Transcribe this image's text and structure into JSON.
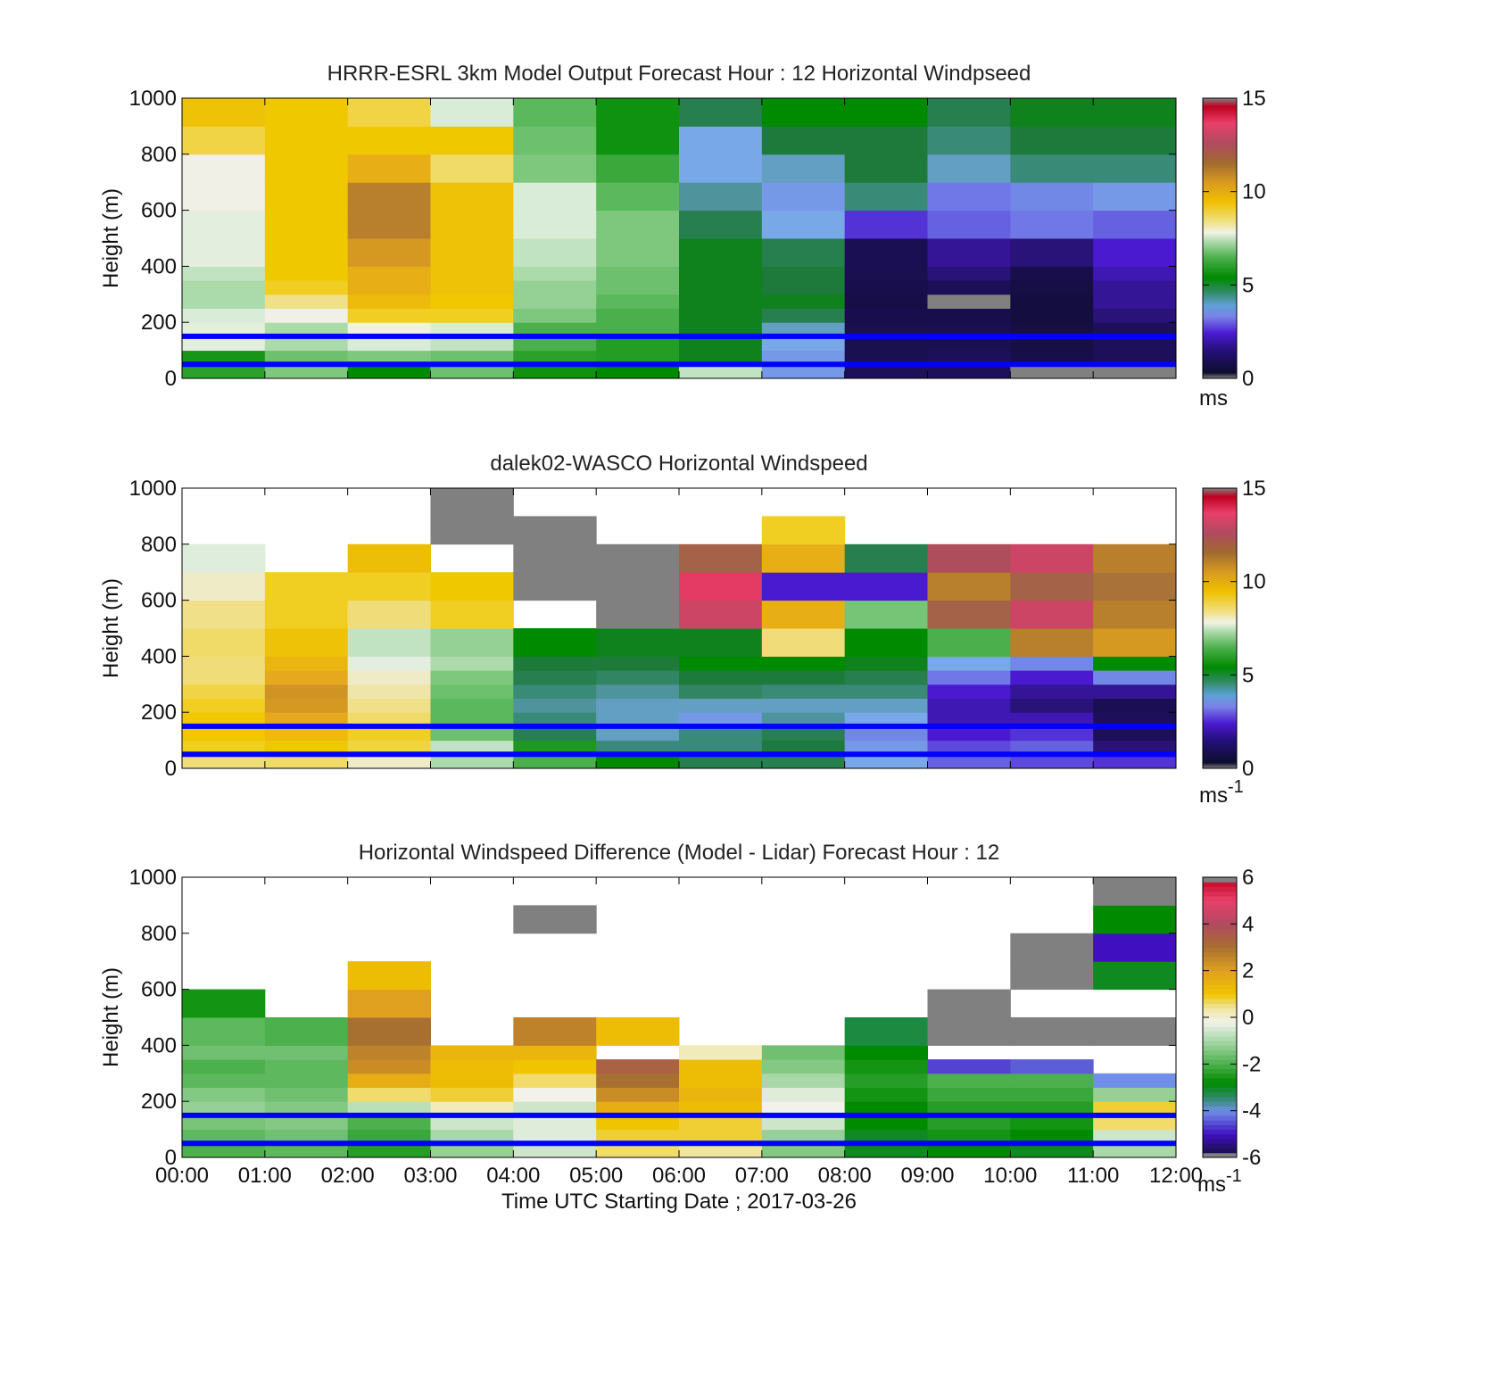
{
  "figure": {
    "xlabel": "Time UTC  Starting Date ; 2017-03-26",
    "xticks": [
      "00:00",
      "01:00",
      "02:00",
      "03:00",
      "04:00",
      "05:00",
      "06:00",
      "07:00",
      "08:00",
      "09:00",
      "10:00",
      "11:00",
      "12:00"
    ]
  },
  "reference_lines": {
    "color": "#0000ff",
    "heights_m": [
      150,
      50
    ]
  },
  "chart_data": [
    {
      "type": "heatmap",
      "title": "HRRR-ESRL 3km Model Output   Forecast Hour : 12 Horizontal Windpseed",
      "ylabel": "Height (m)",
      "yticks": [
        "0",
        "200",
        "400",
        "600",
        "800",
        "1000"
      ],
      "ylim": [
        0,
        1000
      ],
      "xlim_hours": [
        0,
        12
      ],
      "colorbar": {
        "min": 0,
        "max": 15,
        "ticks": [
          "0",
          "5",
          "10",
          "15"
        ],
        "unit": "ms",
        "unit_sup": ""
      },
      "x_hours": [
        0.5,
        1.5,
        2.5,
        3.5,
        4.5,
        5.5,
        6.5,
        7.5,
        8.5,
        9.5,
        10.5,
        11.5
      ],
      "levels_m": [
        25,
        75,
        125,
        175,
        225,
        275,
        325,
        375,
        450,
        550,
        650,
        750,
        850,
        950
      ],
      "windspeed_ms": [
        [
          5.6,
          5.3,
          7.6,
          7.6,
          7.4,
          7.0,
          7.0,
          7.2,
          7.6,
          7.6,
          7.8,
          7.8,
          8.8,
          9.4
        ],
        [
          6.6,
          6.4,
          7.0,
          7.0,
          7.8,
          8.4,
          9.0,
          9.2,
          9.2,
          9.2,
          9.2,
          9.2,
          9.2,
          9.2
        ],
        [
          5.0,
          6.6,
          7.4,
          7.8,
          9.0,
          9.6,
          10.0,
          10.0,
          10.5,
          11.0,
          11.0,
          10.0,
          9.2,
          8.8
        ],
        [
          6.4,
          6.4,
          7.2,
          7.4,
          9.0,
          9.2,
          9.4,
          9.4,
          9.4,
          9.4,
          9.4,
          8.6,
          9.2,
          7.4
        ],
        [
          5.2,
          5.6,
          6.0,
          6.0,
          6.6,
          6.8,
          6.8,
          7.0,
          7.2,
          7.4,
          7.4,
          6.6,
          6.4,
          6.2
        ],
        [
          5.0,
          5.5,
          5.5,
          6.0,
          6.0,
          6.2,
          6.4,
          6.4,
          6.6,
          6.6,
          6.2,
          5.8,
          5.2,
          5.2
        ],
        [
          7.2,
          4.8,
          4.8,
          4.8,
          4.8,
          4.8,
          4.8,
          4.8,
          4.8,
          4.4,
          3.8,
          3.4,
          3.4,
          4.4
        ],
        [
          3.2,
          3.2,
          3.4,
          3.6,
          4.4,
          4.8,
          4.6,
          4.6,
          4.4,
          3.4,
          3.2,
          3.6,
          4.6,
          5.0
        ],
        [
          1.2,
          1.0,
          0.9,
          0.9,
          0.8,
          0.7,
          0.8,
          0.9,
          1.0,
          2.2,
          4.0,
          4.6,
          4.6,
          5.0
        ],
        [
          1.2,
          1.2,
          1.0,
          1.0,
          0.8,
          16.0,
          1.1,
          1.4,
          1.6,
          2.6,
          2.8,
          3.6,
          4.0,
          4.4
        ],
        [
          16.0,
          0.8,
          0.6,
          0.6,
          0.5,
          0.5,
          0.6,
          0.8,
          1.4,
          2.8,
          3.0,
          4.0,
          4.6,
          4.8
        ],
        [
          16.0,
          1.2,
          1.2,
          1.2,
          1.4,
          1.6,
          1.6,
          1.8,
          2.0,
          2.6,
          3.2,
          4.0,
          4.6,
          4.8
        ]
      ]
    },
    {
      "type": "heatmap",
      "title": "dalek02-WASCO  Horizontal Windspeed",
      "ylabel": "Height (m)",
      "yticks": [
        "0",
        "200",
        "400",
        "600",
        "800",
        "1000"
      ],
      "ylim": [
        0,
        1000
      ],
      "xlim_hours": [
        0,
        12
      ],
      "colorbar": {
        "min": 0,
        "max": 15,
        "ticks": [
          "0",
          "5",
          "10",
          "15"
        ],
        "unit": "ms",
        "unit_sup": "-1"
      },
      "x_hours": [
        0.5,
        1.5,
        2.5,
        3.5,
        4.5,
        5.5,
        6.5,
        7.5,
        8.5,
        9.5,
        10.5,
        11.5
      ],
      "levels_m": [
        25,
        75,
        125,
        175,
        225,
        275,
        325,
        375,
        450,
        550,
        650,
        750,
        850,
        950
      ],
      "windspeed_ms": [
        [
          8.5,
          9.0,
          9.2,
          9.2,
          9.0,
          8.8,
          8.5,
          8.5,
          8.6,
          8.4,
          8.0,
          7.5,
          null,
          null
        ],
        [
          8.6,
          9.2,
          9.6,
          10.2,
          10.5,
          10.6,
          10.2,
          9.8,
          9.4,
          9.0,
          9.0,
          null,
          null,
          null
        ],
        [
          8.0,
          8.8,
          9.0,
          8.6,
          8.4,
          8.2,
          8.0,
          7.6,
          7.2,
          8.5,
          9.0,
          9.5,
          null,
          null
        ],
        [
          7.0,
          7.2,
          6.4,
          6.2,
          6.2,
          6.4,
          6.6,
          7.0,
          6.8,
          9.0,
          9.2,
          null,
          16.0,
          16.0
        ],
        [
          6.0,
          5.4,
          4.4,
          4.0,
          3.8,
          4.0,
          4.4,
          4.6,
          5.0,
          null,
          16.0,
          16.0,
          16.0,
          null
        ],
        [
          5.0,
          4.0,
          3.6,
          3.6,
          3.6,
          3.8,
          4.2,
          4.6,
          4.8,
          16.0,
          16.0,
          16.0,
          null,
          null
        ],
        [
          4.4,
          4.0,
          4.0,
          3.2,
          3.6,
          4.2,
          4.6,
          5.0,
          4.8,
          13.0,
          13.5,
          12.0,
          null,
          null
        ],
        [
          4.4,
          4.6,
          4.4,
          3.8,
          3.6,
          4.0,
          4.6,
          5.0,
          8.5,
          10.0,
          2.0,
          10.0,
          9.0,
          null
        ],
        [
          3.4,
          3.2,
          3.0,
          3.4,
          3.6,
          4.0,
          4.4,
          4.8,
          5.0,
          6.5,
          2.0,
          4.4,
          null,
          null
        ],
        [
          2.6,
          2.4,
          2.0,
          1.8,
          1.8,
          2.0,
          2.8,
          3.4,
          6.0,
          12.0,
          11.0,
          12.5,
          null,
          null
        ],
        [
          2.4,
          2.6,
          2.2,
          1.8,
          1.4,
          1.6,
          2.0,
          3.0,
          11.0,
          13.0,
          12.0,
          13.0,
          null,
          null
        ],
        [
          2.2,
          1.4,
          1.2,
          1.2,
          1.0,
          1.6,
          3.0,
          5.0,
          10.5,
          11.0,
          11.5,
          11.0,
          null,
          null
        ]
      ]
    },
    {
      "type": "heatmap",
      "title": "Horizontal Windspeed Difference (Model - Lidar) Forecast Hour : 12",
      "ylabel": "Height (m)",
      "yticks": [
        "0",
        "200",
        "400",
        "600",
        "800",
        "1000"
      ],
      "ylim": [
        0,
        1000
      ],
      "xlim_hours": [
        0,
        12
      ],
      "colorbar": {
        "min": -6,
        "max": 6,
        "ticks": [
          "-6",
          "-4",
          "-2",
          "0",
          "2",
          "4",
          "6"
        ],
        "unit": "ms",
        "unit_sup": "-1"
      },
      "x_hours": [
        0.5,
        1.5,
        2.5,
        3.5,
        4.5,
        5.5,
        6.5,
        7.5,
        8.5,
        9.5,
        10.5,
        11.5
      ],
      "levels_m": [
        25,
        75,
        125,
        175,
        225,
        275,
        325,
        375,
        450,
        550,
        650,
        750,
        850,
        950
      ],
      "difference_ms": [
        [
          -2.0,
          -1.8,
          -1.5,
          -1.2,
          -1.4,
          -1.8,
          -2.0,
          -1.6,
          -1.8,
          -2.6,
          null,
          null,
          null,
          null
        ],
        [
          -1.8,
          -1.6,
          -1.4,
          -1.4,
          -1.6,
          -1.8,
          -1.8,
          -1.6,
          -2.0,
          null,
          null,
          null,
          null,
          null
        ],
        [
          -2.4,
          -2.2,
          -2.0,
          -0.8,
          0.6,
          1.6,
          2.4,
          2.6,
          3.0,
          2.0,
          1.2,
          null,
          null,
          null
        ],
        [
          -1.2,
          -1.0,
          -0.6,
          0.2,
          0.8,
          1.2,
          1.2,
          1.4,
          null,
          null,
          null,
          null,
          null,
          null
        ],
        [
          -0.6,
          -0.4,
          -0.4,
          -0.6,
          -0.2,
          0.6,
          1.0,
          1.4,
          2.6,
          null,
          null,
          null,
          6.6,
          null
        ],
        [
          0.6,
          0.8,
          1.0,
          1.6,
          2.4,
          3.0,
          3.4,
          null,
          1.2,
          null,
          null,
          null,
          null,
          null
        ],
        [
          0.4,
          0.8,
          0.8,
          1.2,
          1.4,
          1.2,
          1.2,
          0.2,
          null,
          null,
          null,
          null,
          null,
          null
        ],
        [
          -1.4,
          -1.2,
          -0.6,
          -0.2,
          -0.4,
          -1.0,
          -1.4,
          -1.6,
          null,
          null,
          null,
          null,
          null,
          null
        ],
        [
          -3.0,
          -3.0,
          -2.8,
          -2.8,
          -2.6,
          -2.4,
          -2.6,
          -2.8,
          -3.2,
          null,
          null,
          null,
          null,
          null
        ],
        [
          -2.8,
          -2.6,
          -2.4,
          -2.4,
          -2.2,
          -2.0,
          -4.6,
          null,
          6.6,
          6.6,
          null,
          null,
          null,
          null
        ],
        [
          -3.0,
          -2.8,
          -2.6,
          -2.4,
          -2.2,
          -2.0,
          -4.4,
          null,
          6.6,
          null,
          6.6,
          6.6,
          null,
          null
        ],
        [
          -1.0,
          -0.6,
          0.6,
          0.8,
          -1.2,
          -4.0,
          null,
          null,
          6.6,
          null,
          -3.0,
          -5.0,
          -2.8,
          6.6
        ]
      ]
    }
  ]
}
